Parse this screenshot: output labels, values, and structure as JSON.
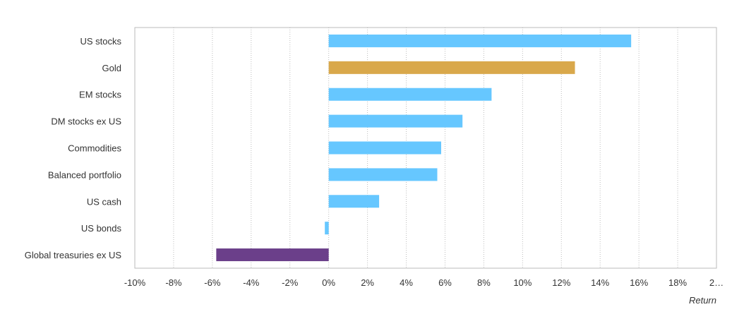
{
  "chart_data": {
    "type": "bar",
    "orientation": "horizontal",
    "xlabel": "Return",
    "xlim": [
      -10,
      20
    ],
    "x_ticks": [
      "-10%",
      "-8%",
      "-6%",
      "-4%",
      "-2%",
      "0%",
      "2%",
      "4%",
      "6%",
      "8%",
      "10%",
      "12%",
      "14%",
      "16%",
      "18%",
      "2…"
    ],
    "grid": "vertical dotted",
    "categories": [
      "US stocks",
      "Gold",
      "EM stocks",
      "DM stocks ex US",
      "Commodities",
      "Balanced portfolio",
      "US cash",
      "US bonds",
      "Global treasuries ex US"
    ],
    "values": [
      15.6,
      12.7,
      8.4,
      6.9,
      5.8,
      5.6,
      2.6,
      -0.2,
      -5.8
    ],
    "colors": [
      "#66c7ff",
      "#d9a84b",
      "#66c7ff",
      "#66c7ff",
      "#66c7ff",
      "#66c7ff",
      "#66c7ff",
      "#66c7ff",
      "#6b3f8a"
    ]
  }
}
